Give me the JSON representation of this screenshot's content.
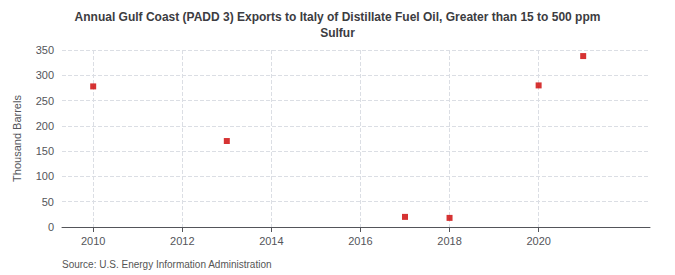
{
  "chart_data": {
    "type": "scatter",
    "title": "Annual Gulf Coast (PADD 3) Exports to Italy of Distillate Fuel Oil, Greater than 15 to 500 ppm\nSulfur",
    "ylabel": "Thousand Barrels",
    "annotation": "Source: U.S. Energy Information Administration",
    "x": [
      2010,
      2013,
      2017,
      2018,
      2020,
      2021
    ],
    "values": [
      278,
      170,
      20,
      18,
      280,
      338
    ],
    "color": "#cc0000",
    "marker": "square",
    "xlim": [
      2009.3,
      2022.5
    ],
    "xticks": [
      2010,
      2012,
      2014,
      2016,
      2018,
      2020
    ],
    "ylim": [
      0,
      350
    ],
    "yticks": [
      0,
      50,
      100,
      150,
      200,
      250,
      300,
      350
    ],
    "grid": true
  }
}
